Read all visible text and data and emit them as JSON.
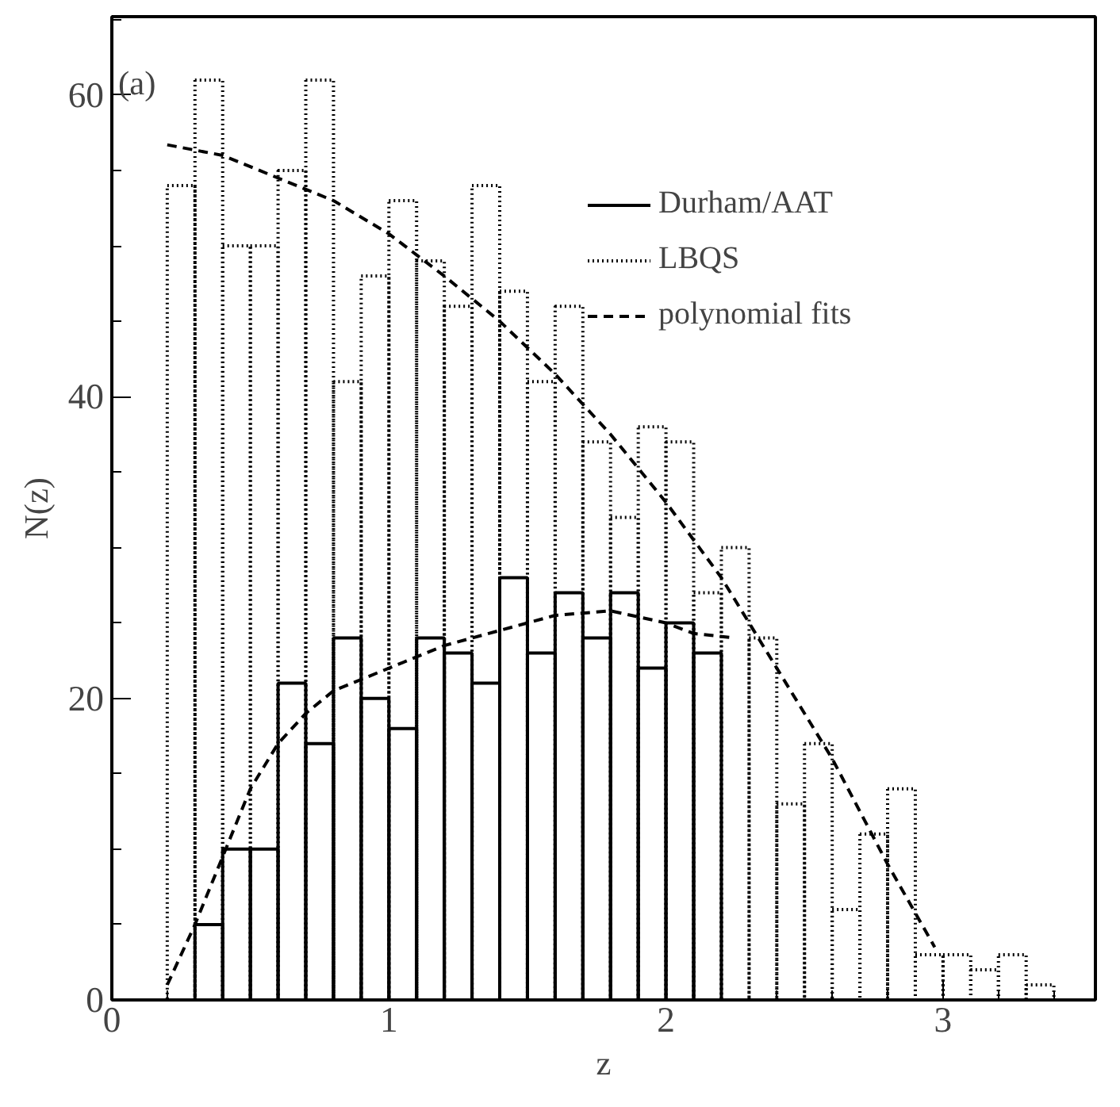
{
  "chart_data": {
    "type": "histogram",
    "xlabel": "z",
    "ylabel": "N(z)",
    "annotations": [
      "(a)"
    ],
    "xlim": [
      0,
      3.55
    ],
    "ylim": [
      0,
      65.2
    ],
    "xticks": [
      0,
      1,
      2,
      3
    ],
    "yticks": [
      0,
      20,
      40,
      60
    ],
    "legend": "top right",
    "grid": false,
    "series": [
      {
        "name": "Durham/AAT",
        "color": "#000000",
        "line_style": "solid",
        "bins": [
          0.3,
          0.4,
          0.5,
          0.6,
          0.7,
          0.8,
          0.9,
          1.0,
          1.1,
          1.2,
          1.3,
          1.4,
          1.5,
          1.6,
          1.7,
          1.8,
          1.9,
          2.0,
          2.1,
          2.2
        ],
        "values": [
          5,
          10,
          10,
          21,
          17,
          24,
          20,
          18,
          24,
          23,
          21,
          28,
          23,
          27,
          24,
          27,
          22,
          25,
          23
        ]
      },
      {
        "name": "LBQS",
        "color": "#000000",
        "line_style": "dotted",
        "bins": [
          0.2,
          0.3,
          0.4,
          0.5,
          0.6,
          0.7,
          0.8,
          0.9,
          1.0,
          1.1,
          1.2,
          1.3,
          1.4,
          1.5,
          1.6,
          1.7,
          1.8,
          1.9,
          2.0,
          2.1,
          2.2,
          2.3,
          2.4,
          2.5,
          2.6,
          2.7,
          2.8,
          2.9,
          3.0,
          3.1,
          3.2,
          3.3,
          3.4
        ],
        "values": [
          54,
          61,
          50,
          50,
          55,
          61,
          41,
          48,
          53,
          49,
          46,
          54,
          47,
          41,
          46,
          37,
          32,
          38,
          37,
          27,
          30,
          24,
          13,
          17,
          6,
          11,
          14,
          3,
          3,
          2,
          3,
          1
        ]
      },
      {
        "name": "polynomial fits",
        "type": "line",
        "color": "#000000",
        "line_style": "dashed",
        "x": [
          0.2,
          0.4,
          0.6,
          0.8,
          1.0,
          1.2,
          1.4,
          1.6,
          1.8,
          2.0,
          2.2,
          2.4,
          2.6,
          2.8,
          2.97
        ],
        "values": [
          56.7,
          56,
          54.5,
          53,
          50.8,
          48,
          45,
          41.5,
          37.5,
          33,
          28,
          22,
          16,
          9,
          3.5
        ]
      },
      {
        "type": "line",
        "color": "#000000",
        "line_style": "dashed",
        "x": [
          0.2,
          0.3,
          0.4,
          0.5,
          0.6,
          0.7,
          0.8,
          1.0,
          1.2,
          1.4,
          1.6,
          1.8,
          2.0,
          2.1,
          2.25
        ],
        "values": [
          1,
          5,
          9.5,
          14,
          17,
          19,
          20.5,
          22,
          23.5,
          24.5,
          25.5,
          25.8,
          25,
          24.3,
          24
        ]
      }
    ]
  }
}
